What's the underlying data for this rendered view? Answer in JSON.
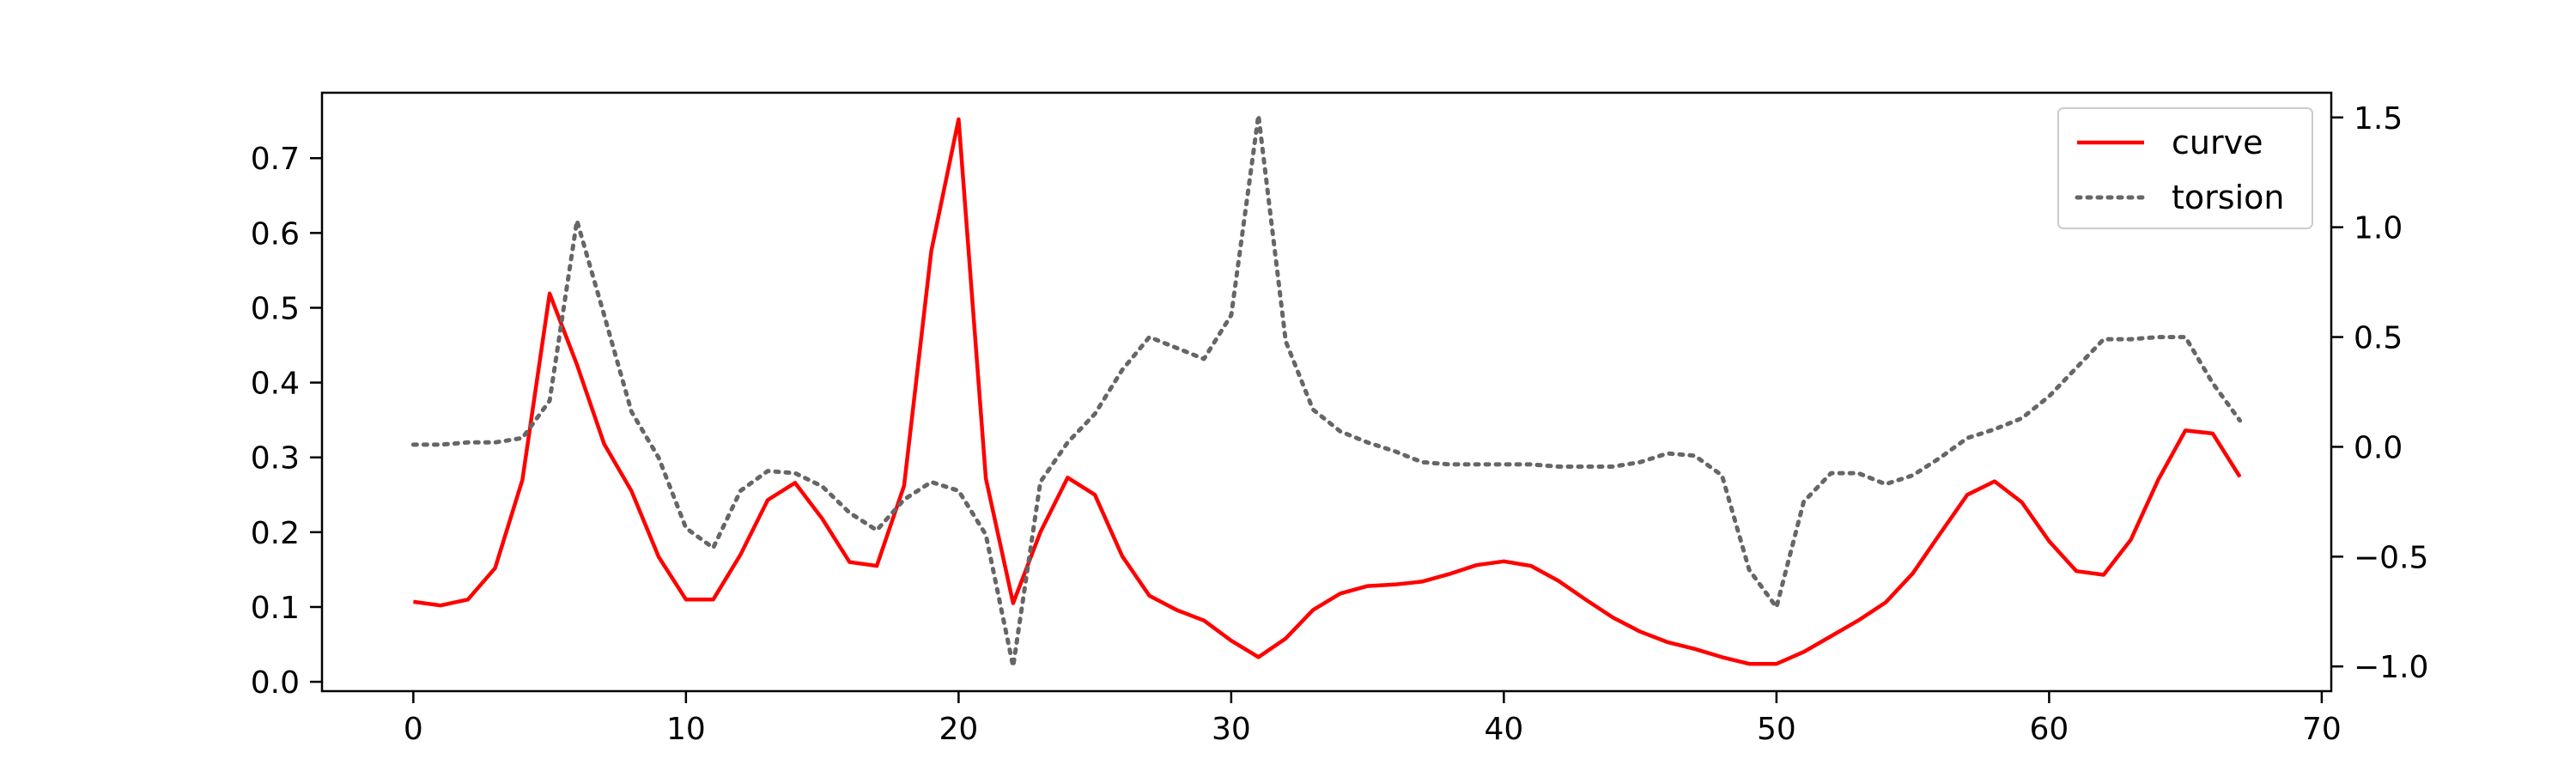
{
  "chart_data": {
    "type": "line",
    "title": "",
    "xlabel": "",
    "ylabel": "",
    "ylabel_right": "",
    "xlim": [
      -3.35,
      70.35
    ],
    "ylim_left": [
      -0.0125,
      0.7875
    ],
    "ylim_right": [
      -1.1125,
      1.6125
    ],
    "x_ticks": [
      0,
      10,
      20,
      30,
      40,
      50,
      60,
      70
    ],
    "x_tick_labels": [
      "0",
      "10",
      "20",
      "30",
      "40",
      "50",
      "60",
      "70"
    ],
    "y_left_ticks": [
      0.0,
      0.1,
      0.2,
      0.3,
      0.4,
      0.5,
      0.6,
      0.7
    ],
    "y_left_tick_labels": [
      "0.0",
      "0.1",
      "0.2",
      "0.3",
      "0.4",
      "0.5",
      "0.6",
      "0.7"
    ],
    "y_right_ticks": [
      -1.0,
      -0.5,
      0.0,
      0.5,
      1.0,
      1.5
    ],
    "y_right_tick_labels": [
      "−1.0",
      "−0.5",
      "0.0",
      "0.5",
      "1.0",
      "1.5"
    ],
    "grid": false,
    "legend_position": "top-right",
    "series": [
      {
        "name": "curve",
        "axis": "left",
        "color": "#ff0000",
        "style": "solid",
        "x": [
          0,
          1,
          2,
          3,
          4,
          5,
          6,
          7,
          8,
          9,
          10,
          11,
          12,
          13,
          14,
          15,
          16,
          17,
          18,
          19,
          20,
          21,
          22,
          23,
          24,
          25,
          26,
          27,
          28,
          29,
          30,
          31,
          32,
          33,
          34,
          35,
          36,
          37,
          38,
          39,
          40,
          41,
          42,
          43,
          44,
          45,
          46,
          47,
          48,
          49,
          50,
          51,
          52,
          53,
          54,
          55,
          56,
          57,
          58,
          59,
          60,
          61,
          62,
          63,
          64,
          65,
          66,
          67
        ],
        "values": [
          0.107,
          0.102,
          0.11,
          0.152,
          0.27,
          0.519,
          0.424,
          0.318,
          0.255,
          0.167,
          0.11,
          0.11,
          0.17,
          0.243,
          0.266,
          0.218,
          0.16,
          0.155,
          0.262,
          0.576,
          0.752,
          0.272,
          0.105,
          0.2,
          0.273,
          0.25,
          0.168,
          0.115,
          0.096,
          0.082,
          0.055,
          0.033,
          0.058,
          0.096,
          0.118,
          0.128,
          0.13,
          0.134,
          0.144,
          0.156,
          0.161,
          0.155,
          0.135,
          0.11,
          0.086,
          0.067,
          0.053,
          0.044,
          0.033,
          0.024,
          0.024,
          0.04,
          0.061,
          0.082,
          0.106,
          0.145,
          0.198,
          0.25,
          0.268,
          0.24,
          0.188,
          0.148,
          0.143,
          0.19,
          0.27,
          0.336,
          0.332,
          0.274
        ]
      },
      {
        "name": "torsion",
        "axis": "right",
        "color": "#666666",
        "style": "dotted",
        "x": [
          0,
          1,
          2,
          3,
          4,
          5,
          6,
          7,
          8,
          9,
          10,
          11,
          12,
          13,
          14,
          15,
          16,
          17,
          18,
          19,
          20,
          21,
          22,
          23,
          24,
          25,
          26,
          27,
          28,
          29,
          30,
          31,
          32,
          33,
          34,
          35,
          36,
          37,
          38,
          39,
          40,
          41,
          42,
          43,
          44,
          45,
          46,
          47,
          48,
          49,
          50,
          51,
          52,
          53,
          54,
          55,
          56,
          57,
          58,
          59,
          60,
          61,
          62,
          63,
          64,
          65,
          66,
          67
        ],
        "values": [
          0.01,
          0.01,
          0.02,
          0.02,
          0.04,
          0.21,
          1.03,
          0.6,
          0.16,
          -0.05,
          -0.37,
          -0.46,
          -0.2,
          -0.11,
          -0.12,
          -0.18,
          -0.3,
          -0.38,
          -0.24,
          -0.16,
          -0.2,
          -0.4,
          -1.0,
          -0.16,
          0.02,
          0.15,
          0.35,
          0.5,
          0.45,
          0.4,
          0.6,
          1.51,
          0.48,
          0.17,
          0.07,
          0.02,
          -0.02,
          -0.07,
          -0.08,
          -0.08,
          -0.08,
          -0.08,
          -0.09,
          -0.09,
          -0.09,
          -0.07,
          -0.03,
          -0.04,
          -0.13,
          -0.56,
          -0.73,
          -0.25,
          -0.12,
          -0.12,
          -0.17,
          -0.13,
          -0.05,
          0.04,
          0.08,
          0.13,
          0.23,
          0.36,
          0.49,
          0.49,
          0.5,
          0.5,
          0.29,
          0.12
        ]
      }
    ]
  }
}
